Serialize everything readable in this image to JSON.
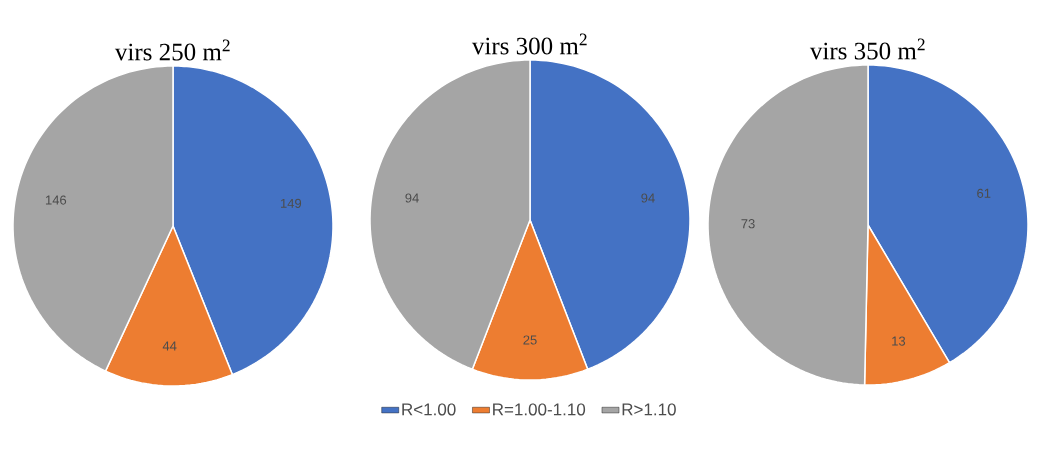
{
  "chart_data": [
    {
      "type": "pie",
      "title": "virs 250 m$^{2}$",
      "categories": [
        null,
        null,
        null
      ],
      "values": [
        149,
        44,
        146
      ],
      "colors": [
        "#4472c4",
        "#ed7d31",
        "#a5a5a5"
      ],
      "data_labels": true
    },
    {
      "type": "pie",
      "title": "virs 300 m$^{2}$",
      "categories": [
        "R<1.00",
        "R=1.00-1.10",
        "R>1.10"
      ],
      "values": [
        94,
        25,
        94
      ],
      "colors": [
        "#4472c4",
        "#ed7d31",
        "#a5a5a5"
      ],
      "data_labels": true,
      "legend": "bottom"
    },
    {
      "type": "pie",
      "title": "virs 350 m$^{2}$",
      "categories": [
        null,
        null,
        null
      ],
      "values": [
        61,
        13,
        73
      ],
      "colors": [
        "#4472c4",
        "#ed7d31",
        "#a5a5a5"
      ],
      "data_labels": true
    }
  ]
}
